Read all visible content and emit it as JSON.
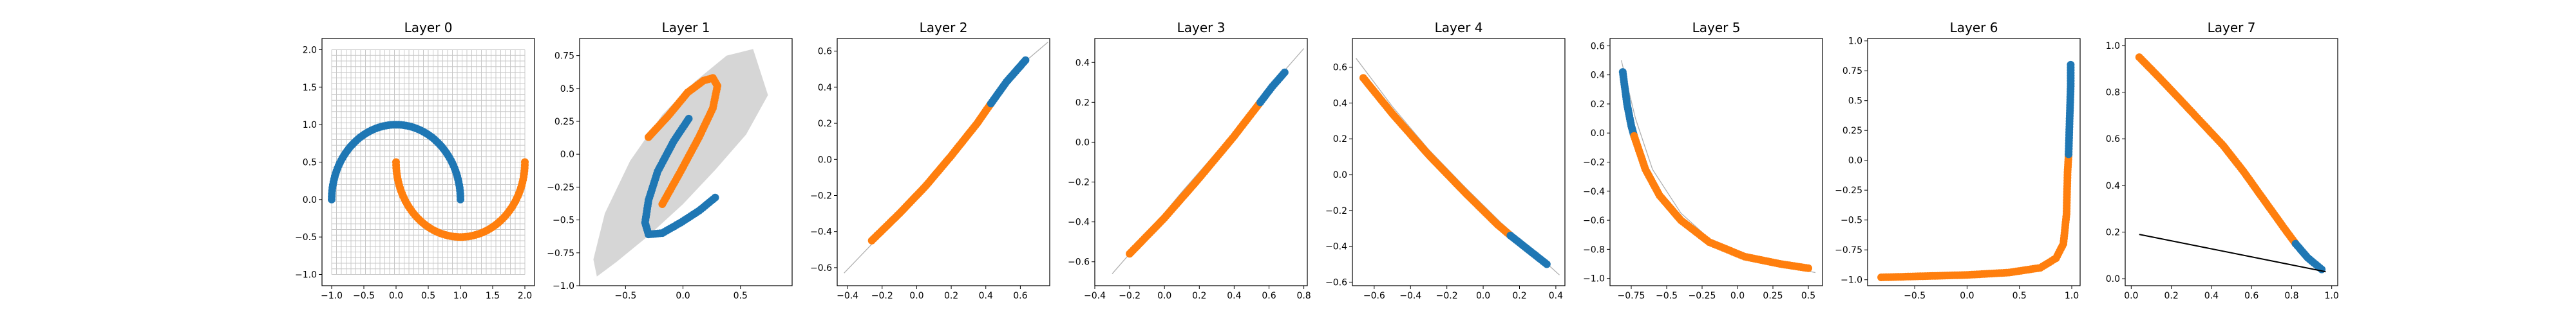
{
  "colors": {
    "class_a": "#1f77b4",
    "class_b": "#ff7f0e",
    "grid": "#c8c8c8",
    "region": "#d6d6d6",
    "curve": "#b0b0b0",
    "arrow": "#000000"
  },
  "chart_data": [
    {
      "type": "scatter",
      "title": "Layer 0",
      "xlim": [
        -1.15,
        2.15
      ],
      "ylim": [
        -1.15,
        2.15
      ],
      "xticks": [
        -1.0,
        -0.5,
        0.0,
        0.5,
        1.0,
        1.5,
        2.0
      ],
      "yticks": [
        -1.0,
        -0.5,
        0.0,
        0.5,
        1.0,
        1.5,
        2.0
      ],
      "grid": {
        "x": [
          -1.0,
          2.0
        ],
        "y": [
          -1.0,
          2.0
        ],
        "lines": 40
      },
      "series": [
        {
          "kind": "arc",
          "color": "class_a",
          "cx": 0,
          "cy": 0,
          "r": 1,
          "a0": 0,
          "a1": 180,
          "n": 80
        },
        {
          "kind": "arc",
          "color": "class_b",
          "cx": 1,
          "cy": 0.5,
          "r": 1,
          "a0": 180,
          "a1": 360,
          "n": 80
        }
      ]
    },
    {
      "type": "scatter",
      "title": "Layer 1",
      "xlim": [
        -0.9,
        0.95
      ],
      "ylim": [
        -1.0,
        0.88
      ],
      "xticks": [
        -0.5,
        0.0,
        0.5
      ],
      "yticks": [
        -1.0,
        -0.75,
        -0.5,
        -0.25,
        0.0,
        0.25,
        0.5,
        0.75
      ],
      "region": [
        [
          -0.75,
          -0.93
        ],
        [
          -0.58,
          -0.82
        ],
        [
          -0.3,
          -0.62
        ],
        [
          0.0,
          -0.38
        ],
        [
          0.28,
          -0.12
        ],
        [
          0.55,
          0.15
        ],
        [
          0.74,
          0.45
        ],
        [
          0.61,
          0.8
        ],
        [
          0.38,
          0.75
        ],
        [
          0.1,
          0.55
        ],
        [
          -0.18,
          0.3
        ],
        [
          -0.46,
          -0.05
        ],
        [
          -0.68,
          -0.45
        ],
        [
          -0.78,
          -0.8
        ]
      ],
      "series": [
        {
          "kind": "path",
          "color": "class_a",
          "points": [
            [
              0.05,
              0.27
            ],
            [
              -0.08,
              0.1
            ],
            [
              -0.22,
              -0.13
            ],
            [
              -0.3,
              -0.35
            ],
            [
              -0.33,
              -0.52
            ],
            [
              -0.3,
              -0.61
            ],
            [
              -0.18,
              -0.6
            ],
            [
              -0.02,
              -0.52
            ],
            [
              0.14,
              -0.43
            ],
            [
              0.28,
              -0.33
            ]
          ]
        },
        {
          "kind": "path",
          "color": "class_b",
          "points": [
            [
              -0.3,
              0.13
            ],
            [
              -0.12,
              0.3
            ],
            [
              0.04,
              0.47
            ],
            [
              0.18,
              0.56
            ],
            [
              0.26,
              0.58
            ],
            [
              0.3,
              0.52
            ],
            [
              0.26,
              0.35
            ],
            [
              0.14,
              0.13
            ],
            [
              -0.02,
              -0.13
            ],
            [
              -0.18,
              -0.38
            ]
          ]
        }
      ]
    },
    {
      "type": "scatter",
      "title": "Layer 2",
      "xlim": [
        -0.46,
        0.77
      ],
      "ylim": [
        -0.7,
        0.67
      ],
      "xticks": [
        -0.4,
        -0.2,
        0.0,
        0.2,
        0.4,
        0.6
      ],
      "yticks": [
        -0.6,
        -0.4,
        -0.2,
        0.0,
        0.2,
        0.4,
        0.6
      ],
      "curve": [
        [
          -0.42,
          -0.63
        ],
        [
          -0.2,
          -0.41
        ],
        [
          0.0,
          -0.2
        ],
        [
          0.2,
          0.02
        ],
        [
          0.4,
          0.3
        ],
        [
          0.6,
          0.52
        ],
        [
          0.76,
          0.65
        ]
      ],
      "series": [
        {
          "kind": "path",
          "color": "class_b",
          "points": [
            [
              -0.26,
              -0.45
            ],
            [
              -0.1,
              -0.3
            ],
            [
              0.05,
              -0.15
            ],
            [
              0.2,
              0.02
            ],
            [
              0.35,
              0.2
            ],
            [
              0.43,
              0.31
            ]
          ]
        },
        {
          "kind": "path",
          "color": "class_a",
          "points": [
            [
              0.43,
              0.31
            ],
            [
              0.52,
              0.43
            ],
            [
              0.63,
              0.55
            ]
          ]
        }
      ]
    },
    {
      "type": "scatter",
      "title": "Layer 3",
      "xlim": [
        -0.4,
        0.82
      ],
      "ylim": [
        -0.72,
        0.52
      ],
      "xticks": [
        -0.4,
        -0.2,
        0.0,
        0.2,
        0.4,
        0.6,
        0.8
      ],
      "yticks": [
        -0.6,
        -0.4,
        -0.2,
        0.0,
        0.2,
        0.4
      ],
      "curve": [
        [
          -0.3,
          -0.66
        ],
        [
          -0.1,
          -0.46
        ],
        [
          0.1,
          -0.25
        ],
        [
          0.3,
          -0.05
        ],
        [
          0.5,
          0.15
        ],
        [
          0.68,
          0.35
        ],
        [
          0.8,
          0.47
        ]
      ],
      "series": [
        {
          "kind": "path",
          "color": "class_b",
          "points": [
            [
              -0.2,
              -0.56
            ],
            [
              0.0,
              -0.38
            ],
            [
              0.2,
              -0.18
            ],
            [
              0.4,
              0.03
            ],
            [
              0.55,
              0.2
            ]
          ]
        },
        {
          "kind": "path",
          "color": "class_a",
          "points": [
            [
              0.55,
              0.2
            ],
            [
              0.62,
              0.28
            ],
            [
              0.69,
              0.35
            ]
          ]
        }
      ]
    },
    {
      "type": "scatter",
      "title": "Layer 4",
      "xlim": [
        -0.72,
        0.45
      ],
      "ylim": [
        -0.62,
        0.76
      ],
      "xticks": [
        -0.6,
        -0.4,
        -0.2,
        0.0,
        0.2,
        0.4
      ],
      "yticks": [
        -0.6,
        -0.4,
        -0.2,
        0.0,
        0.2,
        0.4,
        0.6
      ],
      "curve": [
        [
          -0.7,
          0.65
        ],
        [
          -0.5,
          0.38
        ],
        [
          -0.3,
          0.14
        ],
        [
          -0.1,
          -0.07
        ],
        [
          0.1,
          -0.27
        ],
        [
          0.3,
          -0.45
        ],
        [
          0.42,
          -0.56
        ]
      ],
      "series": [
        {
          "kind": "path",
          "color": "class_b",
          "points": [
            [
              -0.66,
              0.54
            ],
            [
              -0.5,
              0.34
            ],
            [
              -0.3,
              0.11
            ],
            [
              -0.1,
              -0.1
            ],
            [
              0.08,
              -0.28
            ],
            [
              0.15,
              -0.34
            ]
          ]
        },
        {
          "kind": "path",
          "color": "class_a",
          "points": [
            [
              0.15,
              -0.34
            ],
            [
              0.25,
              -0.42
            ],
            [
              0.35,
              -0.5
            ]
          ]
        }
      ]
    },
    {
      "type": "scatter",
      "title": "Layer 5",
      "xlim": [
        -0.9,
        0.6
      ],
      "ylim": [
        -1.05,
        0.65
      ],
      "xticks": [
        -0.75,
        -0.5,
        -0.25,
        0.0,
        0.25,
        0.5
      ],
      "yticks": [
        -1.0,
        -0.8,
        -0.6,
        -0.4,
        -0.2,
        0.0,
        0.2,
        0.4,
        0.6
      ],
      "curve": [
        [
          -0.82,
          0.5
        ],
        [
          -0.72,
          0.1
        ],
        [
          -0.6,
          -0.25
        ],
        [
          -0.4,
          -0.55
        ],
        [
          -0.15,
          -0.77
        ],
        [
          0.15,
          -0.88
        ],
        [
          0.55,
          -0.96
        ]
      ],
      "series": [
        {
          "kind": "path",
          "color": "class_a",
          "points": [
            [
              -0.81,
              0.42
            ],
            [
              -0.78,
              0.2
            ],
            [
              -0.75,
              0.05
            ],
            [
              -0.73,
              -0.02
            ]
          ]
        },
        {
          "kind": "path",
          "color": "class_b",
          "points": [
            [
              -0.73,
              -0.02
            ],
            [
              -0.65,
              -0.25
            ],
            [
              -0.55,
              -0.43
            ],
            [
              -0.4,
              -0.6
            ],
            [
              -0.2,
              -0.75
            ],
            [
              0.05,
              -0.85
            ],
            [
              0.3,
              -0.9
            ],
            [
              0.5,
              -0.93
            ]
          ]
        }
      ]
    },
    {
      "type": "scatter",
      "title": "Layer 6",
      "xlim": [
        -0.95,
        1.08
      ],
      "ylim": [
        -1.05,
        1.02
      ],
      "xticks": [
        -0.5,
        0.0,
        0.5,
        1.0
      ],
      "yticks": [
        -1.0,
        -0.75,
        -0.5,
        -0.25,
        0.0,
        0.25,
        0.5,
        0.75,
        1.0
      ],
      "series": [
        {
          "kind": "path",
          "color": "class_b",
          "points": [
            [
              -0.82,
              -0.98
            ],
            [
              -0.4,
              -0.97
            ],
            [
              0.0,
              -0.96
            ],
            [
              0.4,
              -0.94
            ],
            [
              0.7,
              -0.9
            ],
            [
              0.85,
              -0.82
            ],
            [
              0.92,
              -0.7
            ],
            [
              0.95,
              -0.45
            ],
            [
              0.96,
              -0.1
            ],
            [
              0.97,
              0.05
            ]
          ]
        },
        {
          "kind": "path",
          "color": "class_a",
          "points": [
            [
              0.97,
              0.05
            ],
            [
              0.98,
              0.35
            ],
            [
              0.99,
              0.62
            ],
            [
              0.99,
              0.8
            ]
          ]
        }
      ]
    },
    {
      "type": "scatter",
      "title": "Layer 7",
      "xlim": [
        -0.03,
        1.03
      ],
      "ylim": [
        -0.03,
        1.03
      ],
      "xticks": [
        0.0,
        0.2,
        0.4,
        0.6,
        0.8,
        1.0
      ],
      "yticks": [
        0.0,
        0.2,
        0.4,
        0.6,
        0.8,
        1.0
      ],
      "arrow": [
        [
          0.04,
          0.19
        ],
        [
          0.97,
          0.03
        ]
      ],
      "series": [
        {
          "kind": "path",
          "color": "class_b",
          "points": [
            [
              0.04,
              0.95
            ],
            [
              0.12,
              0.88
            ],
            [
              0.22,
              0.79
            ],
            [
              0.34,
              0.68
            ],
            [
              0.46,
              0.57
            ],
            [
              0.56,
              0.46
            ],
            [
              0.66,
              0.34
            ],
            [
              0.76,
              0.22
            ],
            [
              0.82,
              0.15
            ]
          ]
        },
        {
          "kind": "path",
          "color": "class_a",
          "points": [
            [
              0.82,
              0.15
            ],
            [
              0.88,
              0.09
            ],
            [
              0.95,
              0.04
            ]
          ]
        }
      ]
    }
  ]
}
